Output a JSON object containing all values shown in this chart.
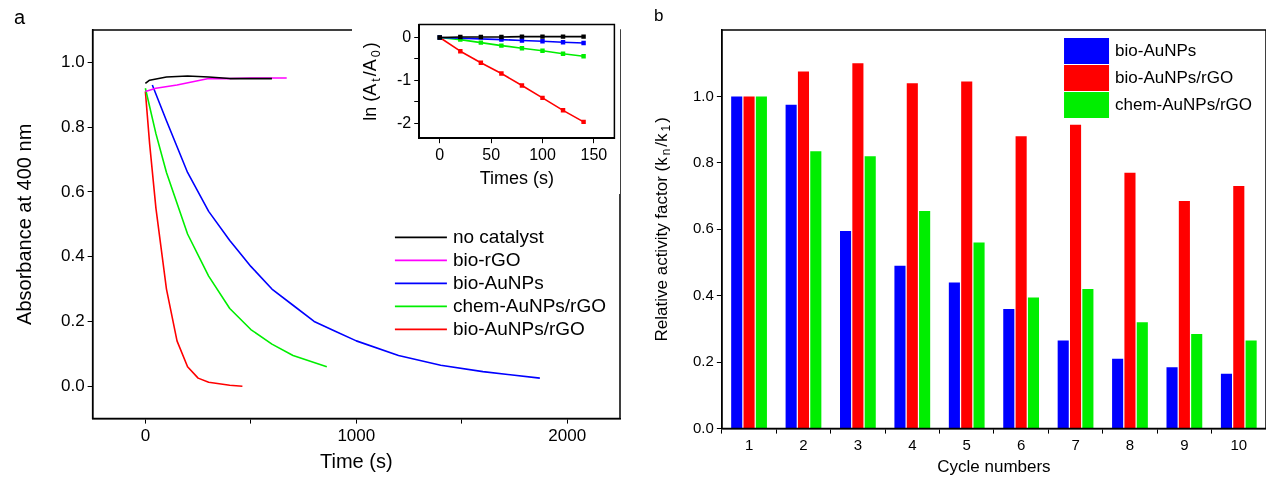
{
  "chart_data": [
    {
      "type": "line",
      "title": "a",
      "xlabel": "Time (s)",
      "ylabel": "Absorbance at 400 nm",
      "xlim": [
        -250,
        2250
      ],
      "xticks": [
        0,
        {
          "value": 500,
          "label": null
        },
        1000,
        {
          "value": 1500,
          "label": null
        },
        2000
      ],
      "ylim": [
        -0.1,
        1.1
      ],
      "yticks": [
        "0.0",
        0.2,
        0.4,
        0.6,
        0.8,
        "1.0"
      ],
      "grid": false,
      "legend": "bottom right",
      "marker": "none",
      "series": [
        {
          "name": "no catalyst",
          "color": "#000000",
          "x": [
            0,
            20,
            100,
            200,
            300,
            400,
            500,
            600
          ],
          "values": [
            0.935,
            0.945,
            0.955,
            0.958,
            0.955,
            0.95,
            0.95,
            0.95
          ]
        },
        {
          "name": "bio-rGO",
          "color": "#ff00ff",
          "x": [
            0,
            50,
            150,
            300,
            400,
            500,
            670
          ],
          "values": [
            0.91,
            0.92,
            0.93,
            0.95,
            0.95,
            0.952,
            0.952
          ]
        },
        {
          "name": "bio-AuNPs",
          "color": "#0000ff",
          "x": [
            33,
            100,
            200,
            300,
            400,
            500,
            600,
            700,
            800,
            900,
            1000,
            1200,
            1400,
            1600,
            1870
          ],
          "values": [
            0.93,
            0.82,
            0.66,
            0.54,
            0.45,
            0.37,
            0.3,
            0.25,
            0.2,
            0.17,
            0.14,
            0.095,
            0.065,
            0.045,
            0.025
          ]
        },
        {
          "name": "chem-AuNPs/rGO",
          "color": "#00ee00",
          "x": [
            0,
            50,
            100,
            200,
            300,
            400,
            500,
            600,
            700,
            860
          ],
          "values": [
            0.92,
            0.78,
            0.66,
            0.47,
            0.34,
            0.24,
            0.175,
            0.13,
            0.095,
            0.06
          ]
        },
        {
          "name": "bio-AuNPs/rGO",
          "color": "#ff0000",
          "x": [
            0,
            20,
            50,
            100,
            150,
            200,
            250,
            300,
            400,
            460
          ],
          "values": [
            0.91,
            0.75,
            0.55,
            0.3,
            0.14,
            0.06,
            0.025,
            0.012,
            0.003,
            0.0
          ]
        }
      ]
    },
    {
      "type": "line",
      "xlabel": "Times (s)",
      "ylabel": "ln (A$_{t}$/A$_{0}$)",
      "xlim": [
        -20,
        170
      ],
      "xticks": [
        0,
        50,
        100,
        150
      ],
      "ylim": [
        -2.35,
        0.3
      ],
      "yticks": [
        0,
        {
          "value": -0.5,
          "label": null
        },
        -1,
        {
          "value": -1.5,
          "label": null
        },
        -2
      ],
      "grid": false,
      "marker": "square",
      "series": [
        {
          "color": "#000000",
          "x": [
            0,
            20,
            40,
            60,
            80,
            100,
            120,
            140
          ],
          "values": [
            0,
            0.01,
            0.01,
            0.01,
            0.02,
            0.02,
            0.02,
            0.02
          ]
        },
        {
          "color": "#0000ff",
          "x": [
            0,
            20,
            40,
            60,
            80,
            100,
            120,
            140
          ],
          "values": [
            0,
            null,
            null,
            -0.05,
            -0.07,
            -0.09,
            -0.11,
            -0.13
          ]
        },
        {
          "color": "#00ee00",
          "x": [
            0,
            20,
            40,
            60,
            80,
            100,
            120,
            140
          ],
          "values": [
            0,
            -0.05,
            -0.12,
            -0.19,
            -0.25,
            -0.31,
            -0.38,
            -0.44
          ]
        },
        {
          "color": "#ff0000",
          "x": [
            0,
            20,
            40,
            60,
            80,
            100,
            120,
            140
          ],
          "values": [
            0,
            -0.32,
            -0.59,
            -0.84,
            -1.12,
            -1.41,
            -1.7,
            -1.97
          ]
        }
      ]
    },
    {
      "type": "bar",
      "title": "b",
      "xlabel": "Cycle numbers",
      "ylabel": "Relative activity factor (k$_{n}$/k$_{1}$)",
      "categories": [
        "1",
        "2",
        "3",
        "4",
        "5",
        "6",
        "7",
        "8",
        "9",
        "10"
      ],
      "ylim": [
        0,
        1.2
      ],
      "yticks": [
        "0.0",
        0.2,
        0.4,
        0.6,
        0.8,
        "1.0"
      ],
      "grid": false,
      "legend": "top right",
      "series": [
        {
          "name": "bio-AuNPs",
          "color": "#0000ff",
          "values": [
            1.0,
            0.975,
            0.595,
            0.49,
            0.44,
            0.36,
            0.265,
            0.21,
            0.185,
            0.165
          ]
        },
        {
          "name": "bio-AuNPs/rGO",
          "color": "#ff0000",
          "values": [
            1.0,
            1.075,
            1.1,
            1.04,
            1.045,
            0.88,
            0.915,
            0.77,
            0.685,
            0.73
          ]
        },
        {
          "name": "chem-AuNPs/rGO",
          "color": "#00ee00",
          "values": [
            1.0,
            0.835,
            0.82,
            0.655,
            0.56,
            0.395,
            0.42,
            0.32,
            0.285,
            0.265
          ]
        }
      ]
    }
  ]
}
